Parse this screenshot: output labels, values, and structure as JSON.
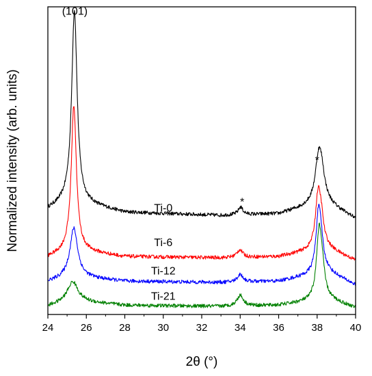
{
  "chart_data": {
    "type": "line",
    "xlabel": "2θ (°)",
    "ylabel": "Normalized intensity (arb. units)",
    "xlim": [
      24,
      40
    ],
    "ylim": [
      0,
      1.0
    ],
    "xticks": [
      24,
      26,
      28,
      30,
      32,
      34,
      36,
      38,
      40
    ],
    "grid": false,
    "legend": "none",
    "series": [
      {
        "name": "Ti-0",
        "color": "#000000",
        "offset": 0.312,
        "baseline": [
          [
            24,
            0.03
          ],
          [
            25.0,
            0.055
          ],
          [
            25.8,
            0.05
          ],
          [
            28,
            0.02
          ],
          [
            33,
            0.01
          ],
          [
            36,
            0.015
          ],
          [
            37.5,
            0.04
          ],
          [
            38.5,
            0.05
          ],
          [
            40,
            0.0
          ]
        ],
        "peaks": [
          {
            "center": 25.38,
            "height": 0.625,
            "width": 0.17
          },
          {
            "center": 34.02,
            "height": 0.025,
            "width": 0.15
          },
          {
            "center": 38.08,
            "height": 0.15,
            "width": 0.22
          },
          {
            "center": 38.25,
            "height": 0.06,
            "width": 0.18
          }
        ],
        "noise": 0.006
      },
      {
        "name": "Ti-6",
        "color": "#ff0000",
        "offset": 0.176,
        "baseline": [
          [
            24,
            0.01
          ],
          [
            25.0,
            0.03
          ],
          [
            25.8,
            0.03
          ],
          [
            28,
            0.012
          ],
          [
            33,
            0.008
          ],
          [
            36,
            0.012
          ],
          [
            37.5,
            0.03
          ],
          [
            38.5,
            0.04
          ],
          [
            40,
            0.0
          ]
        ],
        "peaks": [
          {
            "center": 25.35,
            "height": 0.475,
            "width": 0.16
          },
          {
            "center": 33.98,
            "height": 0.025,
            "width": 0.18
          },
          {
            "center": 38.05,
            "height": 0.17,
            "width": 0.17
          },
          {
            "center": 38.22,
            "height": 0.07,
            "width": 0.15
          }
        ],
        "noise": 0.006
      },
      {
        "name": "Ti-12",
        "color": "#0000ff",
        "offset": 0.096,
        "baseline": [
          [
            24,
            0.01
          ],
          [
            25.0,
            0.025
          ],
          [
            25.8,
            0.025
          ],
          [
            28,
            0.012
          ],
          [
            33,
            0.008
          ],
          [
            36,
            0.012
          ],
          [
            37.5,
            0.03
          ],
          [
            38.5,
            0.045
          ],
          [
            40,
            0.0
          ]
        ],
        "peaks": [
          {
            "center": 25.35,
            "height": 0.16,
            "width": 0.24
          },
          {
            "center": 34.0,
            "height": 0.025,
            "width": 0.18
          },
          {
            "center": 38.07,
            "height": 0.19,
            "width": 0.16
          },
          {
            "center": 38.22,
            "height": 0.06,
            "width": 0.14
          }
        ],
        "noise": 0.006
      },
      {
        "name": "Ti-21",
        "color": "#008000",
        "offset": 0.022,
        "baseline": [
          [
            24,
            0.005
          ],
          [
            25.0,
            0.02
          ],
          [
            25.8,
            0.02
          ],
          [
            28,
            0.008
          ],
          [
            33,
            0.004
          ],
          [
            36,
            0.008
          ],
          [
            37.5,
            0.02
          ],
          [
            38.5,
            0.03
          ],
          [
            40,
            0.0
          ]
        ],
        "peaks": [
          {
            "center": 25.3,
            "height": 0.065,
            "width": 0.32
          },
          {
            "center": 34.0,
            "height": 0.035,
            "width": 0.2
          },
          {
            "center": 38.1,
            "height": 0.215,
            "width": 0.16
          },
          {
            "center": 38.27,
            "height": 0.07,
            "width": 0.14
          }
        ],
        "noise": 0.006
      }
    ],
    "series_labels": [
      {
        "text": "Ti-0",
        "x": 30.0,
        "y": 0.335
      },
      {
        "text": "Ti-6",
        "x": 30.0,
        "y": 0.222
      },
      {
        "text": "Ti-12",
        "x": 30.0,
        "y": 0.13
      },
      {
        "text": "Ti-21",
        "x": 30.0,
        "y": 0.048
      }
    ],
    "annotations": [
      {
        "text": "(101)",
        "x": 25.4,
        "y": 0.975
      },
      {
        "text": "*",
        "x": 34.1,
        "y": 0.355
      },
      {
        "text": "*",
        "x": 38.0,
        "y": 0.49
      }
    ]
  }
}
